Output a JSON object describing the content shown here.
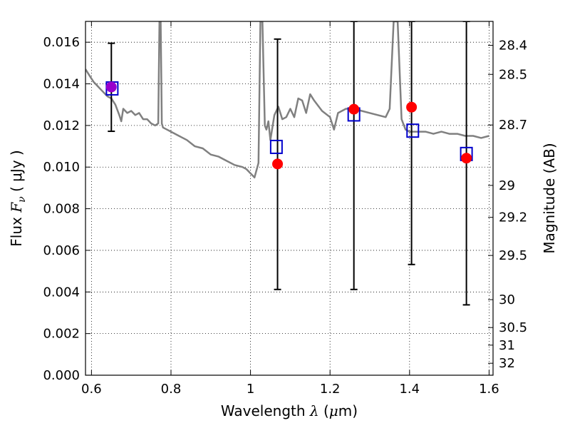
{
  "chart_data": {
    "type": "line",
    "xlabel": {
      "text": "Wavelength",
      "symbol": "λ",
      "unit_open": "(",
      "unit_mu": "μ",
      "unit_rest": "m)"
    },
    "ylabel": {
      "text": "Flux",
      "symbol": "F",
      "sub": "ν",
      "unit": "( μJy )"
    },
    "y2label": "Magnitude (AB)",
    "xlim": [
      0.585,
      1.61
    ],
    "ylim": [
      0.0,
      0.017
    ],
    "grid": true,
    "x_ticks": [
      0.6,
      0.8,
      1.0,
      1.2,
      1.4,
      1.6
    ],
    "x_tick_labels": [
      "0.6",
      "0.8",
      "1",
      "1.2",
      "1.4",
      "1.6"
    ],
    "y_ticks": [
      0.0,
      0.002,
      0.004,
      0.006,
      0.008,
      0.01,
      0.012,
      0.014,
      0.016
    ],
    "y_tick_labels": [
      "0.000",
      "0.002",
      "0.004",
      "0.006",
      "0.008",
      "0.010",
      "0.012",
      "0.014",
      "0.016"
    ],
    "y2_tick_labels": [
      "28.4",
      "28.5",
      "28.7",
      "29",
      "29.2",
      "29.5",
      "30",
      "30.5",
      "31",
      "32"
    ],
    "y2_tick_values": [
      28.4,
      28.5,
      28.7,
      29.0,
      29.2,
      29.5,
      30.0,
      30.5,
      31.0,
      32.0
    ],
    "colors": {
      "spectrum": "#808080",
      "observed": "#ff0000",
      "model": "#0000cc",
      "overlap": "#9900cc",
      "errorbar": "#000000"
    },
    "spectrum": {
      "x": [
        0.585,
        0.595,
        0.605,
        0.615,
        0.625,
        0.64,
        0.65,
        0.66,
        0.67,
        0.675,
        0.68,
        0.69,
        0.7,
        0.71,
        0.72,
        0.73,
        0.74,
        0.75,
        0.76,
        0.768,
        0.771,
        0.774,
        0.777,
        0.78,
        0.79,
        0.8,
        0.82,
        0.84,
        0.86,
        0.88,
        0.9,
        0.92,
        0.94,
        0.96,
        0.98,
        0.99,
        1.0,
        1.01,
        1.02,
        1.025,
        1.03,
        1.036,
        1.04,
        1.045,
        1.05,
        1.06,
        1.07,
        1.08,
        1.09,
        1.1,
        1.11,
        1.12,
        1.13,
        1.14,
        1.15,
        1.16,
        1.18,
        1.2,
        1.21,
        1.22,
        1.24,
        1.26,
        1.28,
        1.3,
        1.32,
        1.34,
        1.35,
        1.36,
        1.37,
        1.38,
        1.39,
        1.4,
        1.42,
        1.44,
        1.46,
        1.48,
        1.5,
        1.52,
        1.54,
        1.56,
        1.58,
        1.6
      ],
      "y": [
        0.0147,
        0.0144,
        0.0141,
        0.0139,
        0.0137,
        0.0134,
        0.0133,
        0.013,
        0.0125,
        0.0122,
        0.0128,
        0.0126,
        0.0127,
        0.0125,
        0.0126,
        0.0123,
        0.0123,
        0.0121,
        0.012,
        0.0121,
        0.017,
        0.017,
        0.0121,
        0.0119,
        0.0118,
        0.0117,
        0.0115,
        0.0113,
        0.011,
        0.0109,
        0.0106,
        0.0105,
        0.0103,
        0.0101,
        0.01,
        0.0099,
        0.0097,
        0.0095,
        0.0102,
        0.017,
        0.017,
        0.012,
        0.0118,
        0.0122,
        0.0113,
        0.0125,
        0.0129,
        0.0123,
        0.0124,
        0.0128,
        0.0124,
        0.0133,
        0.0132,
        0.0126,
        0.0135,
        0.0132,
        0.0127,
        0.0124,
        0.0118,
        0.0126,
        0.0128,
        0.0128,
        0.0127,
        0.0126,
        0.0125,
        0.0124,
        0.0128,
        0.017,
        0.017,
        0.0123,
        0.0118,
        0.0117,
        0.0117,
        0.0117,
        0.0116,
        0.0117,
        0.0116,
        0.0116,
        0.0115,
        0.0115,
        0.0114,
        0.0115
      ]
    },
    "observed": {
      "x": [
        0.65,
        1.068,
        1.26,
        1.405,
        1.543
      ],
      "y": [
        0.01385,
        0.01015,
        0.01278,
        0.01288,
        0.01043
      ],
      "err_low": [
        0.01172,
        0.00412,
        0.00412,
        0.00532,
        0.00338
      ],
      "err_high": [
        0.01595,
        0.01615,
        0.017,
        0.017,
        0.017
      ]
    },
    "model": {
      "x": [
        0.652,
        1.065,
        1.26,
        1.408,
        1.543
      ],
      "y": [
        0.01378,
        0.01097,
        0.01253,
        0.01175,
        0.01063
      ]
    }
  }
}
